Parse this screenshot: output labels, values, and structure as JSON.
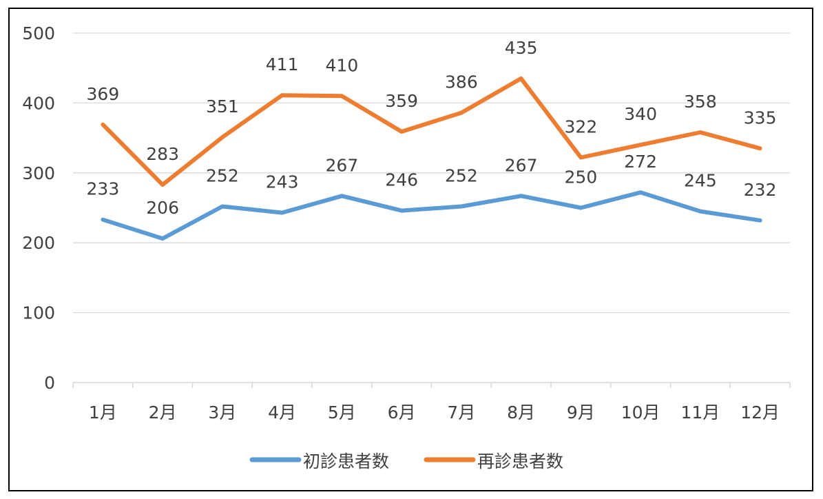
{
  "chart_data": {
    "type": "line",
    "title": "",
    "xlabel": "",
    "ylabel": "",
    "categories": [
      "1月",
      "2月",
      "3月",
      "4月",
      "5月",
      "6月",
      "7月",
      "8月",
      "9月",
      "10月",
      "11月",
      "12月"
    ],
    "ylim": [
      0,
      500
    ],
    "yticks": [
      0,
      100,
      200,
      300,
      400,
      500
    ],
    "grid": true,
    "legend_position": "bottom",
    "series": [
      {
        "name": "初診患者数",
        "color": "#5B9BD5",
        "values": [
          233,
          206,
          252,
          243,
          267,
          246,
          252,
          267,
          250,
          272,
          245,
          232
        ]
      },
      {
        "name": "再診患者数",
        "color": "#ED7D31",
        "values": [
          369,
          283,
          351,
          411,
          410,
          359,
          386,
          435,
          322,
          340,
          358,
          335
        ]
      }
    ]
  }
}
